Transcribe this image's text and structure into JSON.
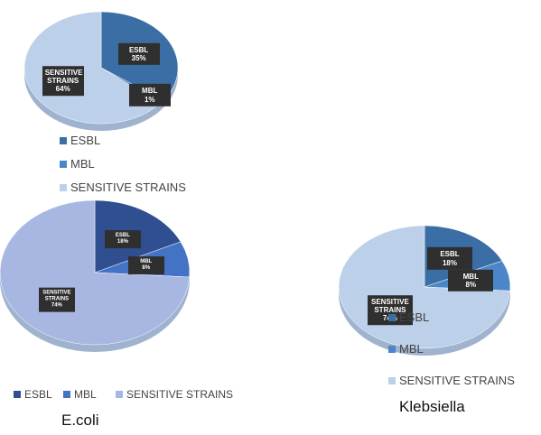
{
  "chart_data": [
    {
      "type": "pie",
      "categories": [
        "ESBL",
        "MBL",
        "SENSITIVE STRAINS"
      ],
      "values": [
        35,
        1,
        64
      ],
      "value_labels": [
        "35%",
        "1%",
        "64%"
      ],
      "colors": [
        "#3b6ea5",
        "#4a86c8",
        "#bcd0ea"
      ],
      "legend": "bottom"
    },
    {
      "type": "pie",
      "title": "E.coli",
      "categories": [
        "ESBL",
        "MBL",
        "SENSITIVE STRAINS"
      ],
      "values": [
        18,
        8,
        74
      ],
      "value_labels": [
        "18%",
        "8%",
        "74%"
      ],
      "colors": [
        "#2f4f91",
        "#4472c4",
        "#a8b7e2"
      ],
      "legend": "bottom"
    },
    {
      "type": "pie",
      "title": "Klebsiella",
      "categories": [
        "ESBL",
        "MBL",
        "SENSITIVE STRAINS"
      ],
      "values": [
        18,
        8,
        74
      ],
      "value_labels": [
        "18%",
        "8%",
        "74%"
      ],
      "colors": [
        "#3b6ea5",
        "#4a86c8",
        "#bcd0ea"
      ],
      "legend": "right"
    }
  ]
}
